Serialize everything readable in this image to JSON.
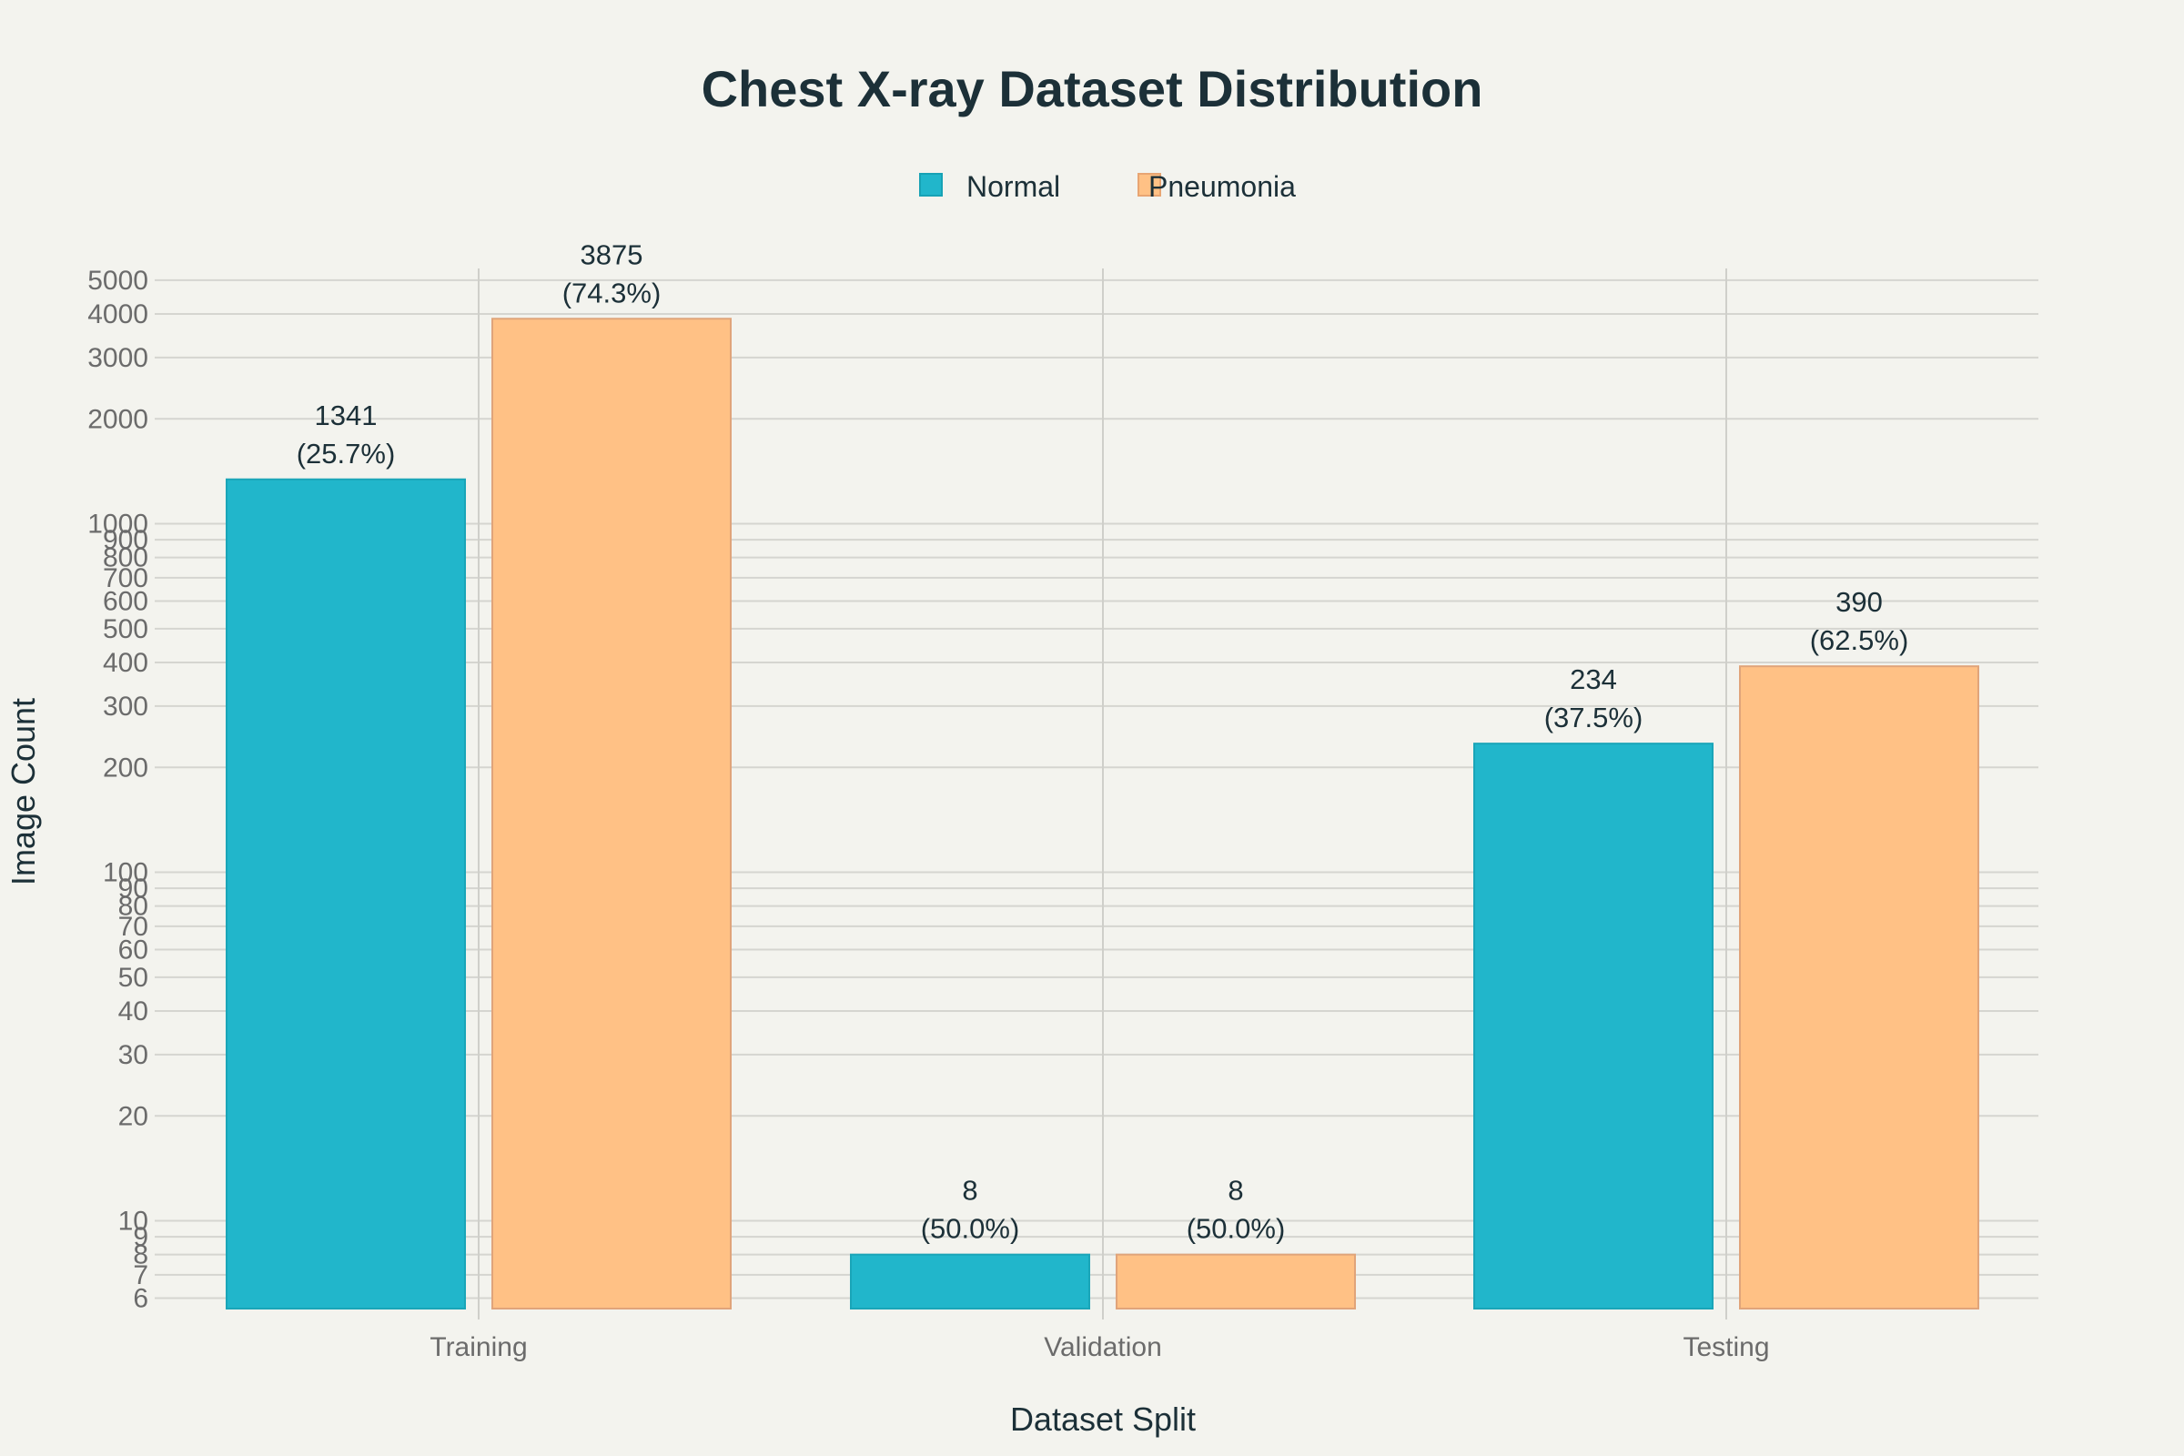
{
  "chart_data": {
    "type": "bar",
    "title": "Chest X-ray Dataset Distribution",
    "xlabel": "Dataset Split",
    "ylabel": "Image Count",
    "y_scale": "log",
    "ylim": [
      5.6,
      5500
    ],
    "yticks": [
      6,
      7,
      8,
      9,
      10,
      20,
      30,
      40,
      50,
      60,
      70,
      80,
      90,
      100,
      200,
      300,
      400,
      500,
      600,
      700,
      800,
      900,
      1000,
      2000,
      3000,
      4000,
      5000
    ],
    "categories": [
      "Training",
      "Validation",
      "Testing"
    ],
    "grid": true,
    "legend_position": "top-center",
    "series": [
      {
        "name": "Normal",
        "color": "#21b6cb",
        "values": [
          1341,
          8,
          234
        ],
        "percent_labels": [
          "(25.7%)",
          "(50.0%)",
          "(37.5%)"
        ]
      },
      {
        "name": "Pneumonia",
        "color": "#ffc185",
        "values": [
          3875,
          8,
          390
        ],
        "percent_labels": [
          "(74.3%)",
          "(50.0%)",
          "(62.5%)"
        ]
      }
    ]
  }
}
